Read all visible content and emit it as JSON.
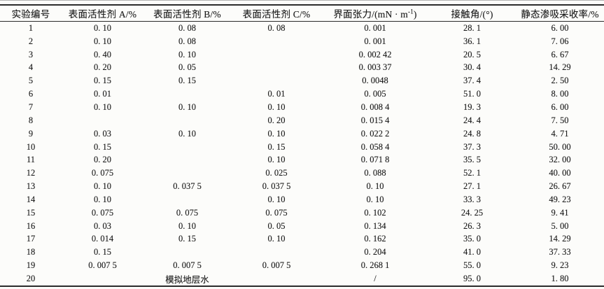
{
  "page": {
    "background": "#fcfcfa",
    "rule_color": "#2b2b2b",
    "text_color": "#1c1c1c"
  },
  "table": {
    "headers": {
      "col1": "实验编号",
      "col2": "表面活性剂 A/%",
      "col3": "表面活性剂 B/%",
      "col4": "表面活性剂 C/%",
      "col5_pre": "界面张力/(mN · m",
      "col5_sup": "-1",
      "col5_post": ")",
      "col6": "接触角/(°)",
      "col7": "静态渗吸采收率/%"
    },
    "rows": [
      [
        "1",
        "0. 10",
        "0. 08",
        "0. 08",
        "0. 001",
        "28. 1",
        "6. 00"
      ],
      [
        "2",
        "0. 10",
        "0. 08",
        "",
        "0. 001",
        "36. 1",
        "7. 06"
      ],
      [
        "3",
        "0. 40",
        "0. 10",
        "",
        "0. 002 42",
        "20. 5",
        "6. 67"
      ],
      [
        "4",
        "0. 20",
        "0. 05",
        "",
        "0. 003 37",
        "30. 4",
        "14. 29"
      ],
      [
        "5",
        "0. 15",
        "0. 15",
        "",
        "0. 0048",
        "37. 4",
        "2. 50"
      ],
      [
        "6",
        "0. 01",
        "",
        "0. 01",
        "0. 005",
        "51. 0",
        "8. 00"
      ],
      [
        "7",
        "0. 10",
        "0. 10",
        "0. 10",
        "0. 008 4",
        "19. 3",
        "6. 00"
      ],
      [
        "8",
        "",
        "",
        "0. 20",
        "0. 015 4",
        "24. 4",
        "7. 50"
      ],
      [
        "9",
        "0. 03",
        "0. 10",
        "0. 10",
        "0. 022 2",
        "24. 8",
        "4. 71"
      ],
      [
        "10",
        "0. 15",
        "",
        "0. 15",
        "0. 058 4",
        "37. 3",
        "50. 00"
      ],
      [
        "11",
        "0. 20",
        "",
        "0. 10",
        "0. 071 8",
        "35. 5",
        "32. 00"
      ],
      [
        "12",
        "0. 075",
        "",
        "0. 025",
        "0. 088",
        "52. 1",
        "40. 00"
      ],
      [
        "13",
        "0. 10",
        "0. 037 5",
        "0. 037 5",
        "0. 10",
        "27. 1",
        "26. 67"
      ],
      [
        "14",
        "0. 10",
        "",
        "0. 10",
        "0. 10",
        "33. 3",
        "49. 23"
      ],
      [
        "15",
        "0. 075",
        "0. 075",
        "0. 075",
        "0. 102",
        "24. 25",
        "9. 41"
      ],
      [
        "16",
        "0. 03",
        "0. 10",
        "0. 05",
        "0. 134",
        "26. 3",
        "5. 00"
      ],
      [
        "17",
        "0. 014",
        "0. 15",
        "0. 10",
        "0. 162",
        "35. 0",
        "14. 29"
      ],
      [
        "18",
        "0. 15",
        "",
        "",
        "0. 204",
        "41. 0",
        "37. 33"
      ],
      [
        "19",
        "0. 007 5",
        "0. 007 5",
        "0. 007 5",
        "0. 268 1",
        "55. 0",
        "9. 23"
      ],
      [
        "20",
        "",
        "模拟地层水",
        "",
        "/",
        "95. 0",
        "1. 80"
      ]
    ]
  }
}
